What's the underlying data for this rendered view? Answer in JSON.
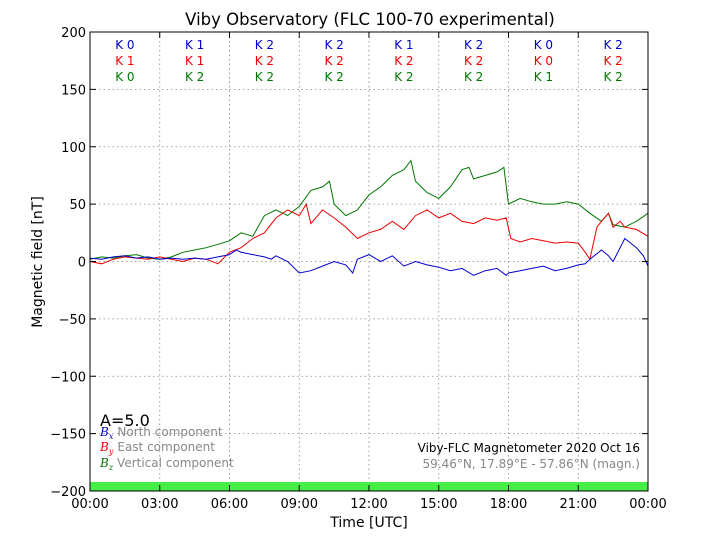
{
  "chart_data": {
    "type": "line",
    "title": "Viby Observatory (FLC 100-70 experimental)",
    "xlabel": "Time [UTC]",
    "ylabel": "Magnetic field [nT]",
    "xlim": [
      0,
      24
    ],
    "ylim": [
      -200,
      200
    ],
    "x_ticks": [
      0,
      3,
      6,
      9,
      12,
      15,
      18,
      21,
      24
    ],
    "x_tick_labels": [
      "00:00",
      "03:00",
      "06:00",
      "09:00",
      "12:00",
      "15:00",
      "18:00",
      "21:00",
      "00:00"
    ],
    "y_ticks": [
      -200,
      -150,
      -100,
      -50,
      0,
      50,
      100,
      150,
      200
    ],
    "y_tick_labels": [
      "−200",
      "−150",
      "−100",
      "−50",
      "0",
      "50",
      "100",
      "150",
      "200"
    ],
    "grid": true,
    "k_index": {
      "block_centers": [
        1.5,
        4.5,
        7.5,
        10.5,
        13.5,
        16.5,
        19.5,
        22.5
      ],
      "rows": [
        {
          "component": "x",
          "color": "#0000cc",
          "labels": [
            "K 0",
            "K 1",
            "K 2",
            "K 2",
            "K 1",
            "K 2",
            "K 0",
            "K 2"
          ]
        },
        {
          "component": "y",
          "color": "#ee0000",
          "labels": [
            "K 1",
            "K 1",
            "K 2",
            "K 2",
            "K 2",
            "K 2",
            "K 0",
            "K 2"
          ]
        },
        {
          "component": "z",
          "color": "#007700",
          "labels": [
            "K 0",
            "K 2",
            "K 2",
            "K 2",
            "K 2",
            "K 2",
            "K 1",
            "K 2"
          ]
        }
      ]
    },
    "a_index": "A=5.0",
    "legend": {
      "position": "lower-left",
      "entries": [
        {
          "symbol": "B",
          "subscript": "x",
          "label": "North component",
          "color": "#0000cc"
        },
        {
          "symbol": "B",
          "subscript": "y",
          "label": "East component",
          "color": "#ee0000"
        },
        {
          "symbol": "B",
          "subscript": "z",
          "label": "Vertical component",
          "color": "#007700"
        }
      ]
    },
    "info": {
      "line1": "Viby-FLC Magnetometer 2020 Oct 16",
      "line2": "59.46°N, 17.89°E - 57.86°N (magn.)"
    },
    "status_bar_color": "#44ee44",
    "series": [
      {
        "name": "North component",
        "color": "#0000cc",
        "x": [
          0,
          0.5,
          1.0,
          1.5,
          2.0,
          2.5,
          3.0,
          3.5,
          4.0,
          4.5,
          5.0,
          5.5,
          6.0,
          6.3,
          6.5,
          7.0,
          7.5,
          7.8,
          8.0,
          8.5,
          9.0,
          9.5,
          10.0,
          10.5,
          11.0,
          11.3,
          11.5,
          12.0,
          12.5,
          13.0,
          13.5,
          14.0,
          14.5,
          15.0,
          15.5,
          16.0,
          16.5,
          17.0,
          17.5,
          17.9,
          18.0,
          18.5,
          19.0,
          19.5,
          20.0,
          20.5,
          21.0,
          21.3,
          21.5,
          22.0,
          22.3,
          22.5,
          23.0,
          23.5,
          23.8,
          24.0
        ],
        "y": [
          3,
          2,
          4,
          5,
          3,
          4,
          2,
          3,
          2,
          3,
          2,
          4,
          6,
          10,
          8,
          6,
          4,
          2,
          5,
          0,
          -10,
          -8,
          -4,
          0,
          -3,
          -10,
          2,
          6,
          0,
          5,
          -4,
          0,
          -3,
          -5,
          -8,
          -6,
          -12,
          -8,
          -6,
          -12,
          -10,
          -8,
          -6,
          -4,
          -8,
          -6,
          -3,
          -2,
          2,
          10,
          5,
          0,
          20,
          12,
          5,
          -4
        ]
      },
      {
        "name": "East component",
        "color": "#ee0000",
        "x": [
          0,
          0.5,
          1.0,
          1.5,
          2.0,
          2.5,
          3.0,
          3.5,
          4.0,
          4.5,
          5.0,
          5.5,
          6.0,
          6.5,
          7.0,
          7.5,
          8.0,
          8.5,
          9.0,
          9.3,
          9.5,
          10.0,
          10.5,
          11.0,
          11.5,
          12.0,
          12.5,
          13.0,
          13.5,
          14.0,
          14.5,
          15.0,
          15.5,
          16.0,
          16.5,
          17.0,
          17.5,
          17.9,
          18.1,
          18.5,
          19.0,
          19.5,
          20.0,
          20.5,
          21.0,
          21.3,
          21.5,
          21.8,
          22.0,
          22.3,
          22.5,
          22.8,
          23.0,
          23.5,
          24.0
        ],
        "y": [
          0,
          -2,
          2,
          4,
          3,
          2,
          4,
          2,
          0,
          3,
          2,
          -2,
          8,
          12,
          20,
          25,
          38,
          45,
          40,
          50,
          33,
          45,
          38,
          30,
          20,
          25,
          28,
          35,
          28,
          40,
          45,
          38,
          42,
          35,
          33,
          38,
          36,
          38,
          20,
          17,
          20,
          18,
          16,
          17,
          16,
          8,
          2,
          30,
          35,
          42,
          30,
          35,
          30,
          28,
          22
        ]
      },
      {
        "name": "Vertical component",
        "color": "#007700",
        "x": [
          0,
          0.5,
          1.0,
          1.5,
          2.0,
          2.5,
          3.0,
          3.5,
          4.0,
          4.5,
          5.0,
          5.5,
          6.0,
          6.5,
          7.0,
          7.5,
          8.0,
          8.5,
          9.0,
          9.5,
          10.0,
          10.3,
          10.5,
          11.0,
          11.5,
          12.0,
          12.5,
          13.0,
          13.5,
          13.8,
          14.0,
          14.5,
          15.0,
          15.5,
          16.0,
          16.3,
          16.5,
          17.0,
          17.5,
          17.8,
          18.0,
          18.5,
          19.0,
          19.5,
          20.0,
          20.5,
          21.0,
          21.5,
          22.0,
          22.3,
          22.5,
          23.0,
          23.5,
          24.0
        ],
        "y": [
          2,
          4,
          3,
          5,
          6,
          3,
          2,
          4,
          8,
          10,
          12,
          15,
          18,
          25,
          22,
          40,
          45,
          40,
          48,
          62,
          65,
          70,
          50,
          40,
          45,
          58,
          65,
          75,
          80,
          88,
          70,
          60,
          55,
          65,
          80,
          82,
          72,
          75,
          78,
          82,
          50,
          55,
          52,
          50,
          50,
          52,
          50,
          42,
          35,
          42,
          32,
          30,
          35,
          42
        ]
      }
    ]
  }
}
